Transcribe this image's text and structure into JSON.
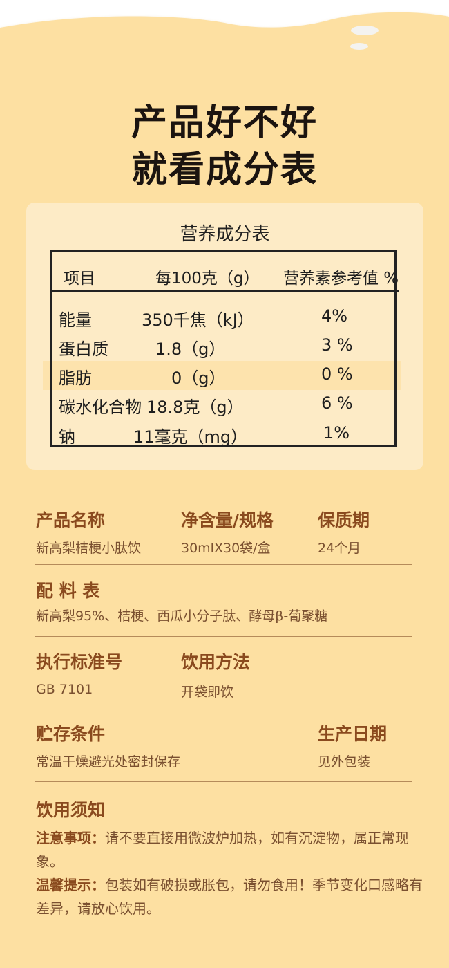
{
  "colors": {
    "background": "#fde0a2",
    "card": "#fdebc6",
    "label": "#8a4a1e",
    "value": "#7a5030",
    "title": "#1b1410"
  },
  "headline": {
    "line1": "产品好不好",
    "line2": "就看成分表"
  },
  "nutrition": {
    "title": "营养成分表",
    "headers": [
      "项目",
      "每100克（g）",
      "营养素参考值 %"
    ],
    "rows": [
      {
        "item": "能量",
        "amount": "350千焦（kJ）",
        "nrv": "4%"
      },
      {
        "item": "蛋白质",
        "amount": "1.8（g）",
        "nrv": "3 %"
      },
      {
        "item": "脂肪",
        "amount": "0（g）",
        "nrv": "0 %"
      },
      {
        "item": "碳水化合物",
        "amount": "18.8克（g）",
        "nrv": "6 %"
      },
      {
        "item": "钠",
        "amount": "11毫克（mg）",
        "nrv": "1%"
      }
    ]
  },
  "info": {
    "product_name": {
      "label": "产品名称",
      "value": "新高梨桔梗小肽饮"
    },
    "net_content": {
      "label": "净含量/规格",
      "value": "30mlX30袋/盒"
    },
    "shelf_life": {
      "label": "保质期",
      "value": "24个月"
    },
    "ingredients": {
      "label": "配 料 表",
      "value": "新高梨95%、桔梗、西瓜小分子肽、酵母β-葡聚糖"
    },
    "standard": {
      "label": "执行标准号",
      "value": "GB 7101"
    },
    "usage": {
      "label": "饮用方法",
      "value": "开袋即饮"
    },
    "storage": {
      "label": "贮存条件",
      "value": "常温干燥避光处密封保存"
    },
    "production_date": {
      "label": "生产日期",
      "value": "见外包装"
    }
  },
  "notice": {
    "title": "饮用须知",
    "caution_label": "注意事项：",
    "caution_text": "请不要直接用微波炉加热，如有沉淀物，属正常现象。",
    "tip_label": "温馨提示：",
    "tip_text": "包装如有破损或胀包，请勿食用！季节变化口感略有差异，请放心饮用。"
  }
}
